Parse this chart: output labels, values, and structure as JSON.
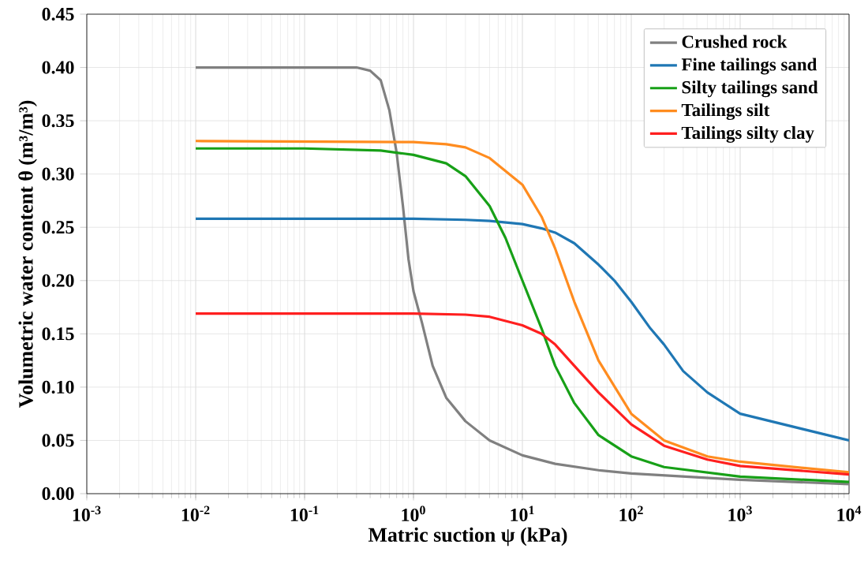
{
  "chart_data": {
    "type": "line",
    "xlabel": "Matric suction ψ (kPa)",
    "ylabel": "Volumetric water content θ (m³/m³)",
    "log": "x",
    "grid": true,
    "legend": "top right",
    "line_style": "solid",
    "xlim": [
      0.001,
      10000
    ],
    "ylim": [
      0,
      0.45
    ],
    "xticks": [
      {
        "value": 0.001,
        "label": "10$^{-3}$"
      },
      {
        "value": 0.01,
        "label": "10$^{-2}$"
      },
      {
        "value": 0.1,
        "label": "10$^{-1}$"
      },
      {
        "value": 1,
        "label": "10$^{0}$"
      },
      {
        "value": 10,
        "label": "10$^{1}$"
      },
      {
        "value": 100,
        "label": "10$^{2}$"
      },
      {
        "value": 1000,
        "label": "10$^{3}$"
      },
      {
        "value": 10000,
        "label": "10$^{4}$"
      }
    ],
    "yticks": [
      {
        "value": 0,
        "label": "0.00"
      },
      {
        "value": 0.05,
        "label": "0.05"
      },
      {
        "value": 0.1,
        "label": "0.10"
      },
      {
        "value": 0.15,
        "label": "0.15"
      },
      {
        "value": 0.2,
        "label": "0.20"
      },
      {
        "value": 0.25,
        "label": "0.25"
      },
      {
        "value": 0.3,
        "label": "0.30"
      },
      {
        "value": 0.35,
        "label": "0.35"
      },
      {
        "value": 0.4,
        "label": "0.40"
      },
      {
        "value": 0.45,
        "label": "0.45"
      }
    ],
    "series": [
      {
        "name": "Crushed rock",
        "color": "#808080",
        "x": [
          0.01,
          0.1,
          0.3,
          0.4,
          0.5,
          0.6,
          0.7,
          0.8,
          0.9,
          1,
          1.2,
          1.5,
          2,
          3,
          5,
          10,
          20,
          50,
          100,
          1000,
          10000
        ],
        "values": [
          0.4,
          0.4,
          0.4,
          0.397,
          0.388,
          0.36,
          0.32,
          0.27,
          0.22,
          0.19,
          0.16,
          0.12,
          0.09,
          0.068,
          0.05,
          0.036,
          0.028,
          0.022,
          0.019,
          0.013,
          0.009
        ]
      },
      {
        "name": "Fine tailings sand",
        "color": "#1f77b4",
        "x": [
          0.01,
          1,
          3,
          5,
          10,
          15,
          20,
          30,
          50,
          70,
          100,
          150,
          200,
          300,
          500,
          1000,
          10000
        ],
        "values": [
          0.258,
          0.258,
          0.257,
          0.256,
          0.253,
          0.249,
          0.245,
          0.235,
          0.215,
          0.2,
          0.18,
          0.155,
          0.14,
          0.115,
          0.095,
          0.075,
          0.05
        ]
      },
      {
        "name": "Silty tailings sand",
        "color": "#17a017",
        "x": [
          0.01,
          0.1,
          0.5,
          1,
          2,
          3,
          5,
          7,
          10,
          15,
          20,
          30,
          50,
          100,
          200,
          1000,
          10000
        ],
        "values": [
          0.324,
          0.324,
          0.322,
          0.318,
          0.31,
          0.298,
          0.27,
          0.24,
          0.2,
          0.155,
          0.12,
          0.085,
          0.055,
          0.035,
          0.025,
          0.016,
          0.011
        ]
      },
      {
        "name": "Tailings silt",
        "color": "#ff8c1f",
        "x": [
          0.01,
          1,
          2,
          3,
          5,
          10,
          15,
          20,
          30,
          50,
          100,
          200,
          500,
          1000,
          10000
        ],
        "values": [
          0.331,
          0.33,
          0.328,
          0.325,
          0.315,
          0.29,
          0.26,
          0.23,
          0.18,
          0.125,
          0.075,
          0.05,
          0.035,
          0.03,
          0.02
        ]
      },
      {
        "name": "Tailings silty clay",
        "color": "#ff1f1f",
        "x": [
          0.01,
          1,
          3,
          5,
          10,
          15,
          20,
          30,
          50,
          100,
          200,
          500,
          1000,
          10000
        ],
        "values": [
          0.169,
          0.169,
          0.168,
          0.166,
          0.158,
          0.15,
          0.14,
          0.12,
          0.095,
          0.065,
          0.045,
          0.032,
          0.026,
          0.018
        ]
      }
    ]
  }
}
